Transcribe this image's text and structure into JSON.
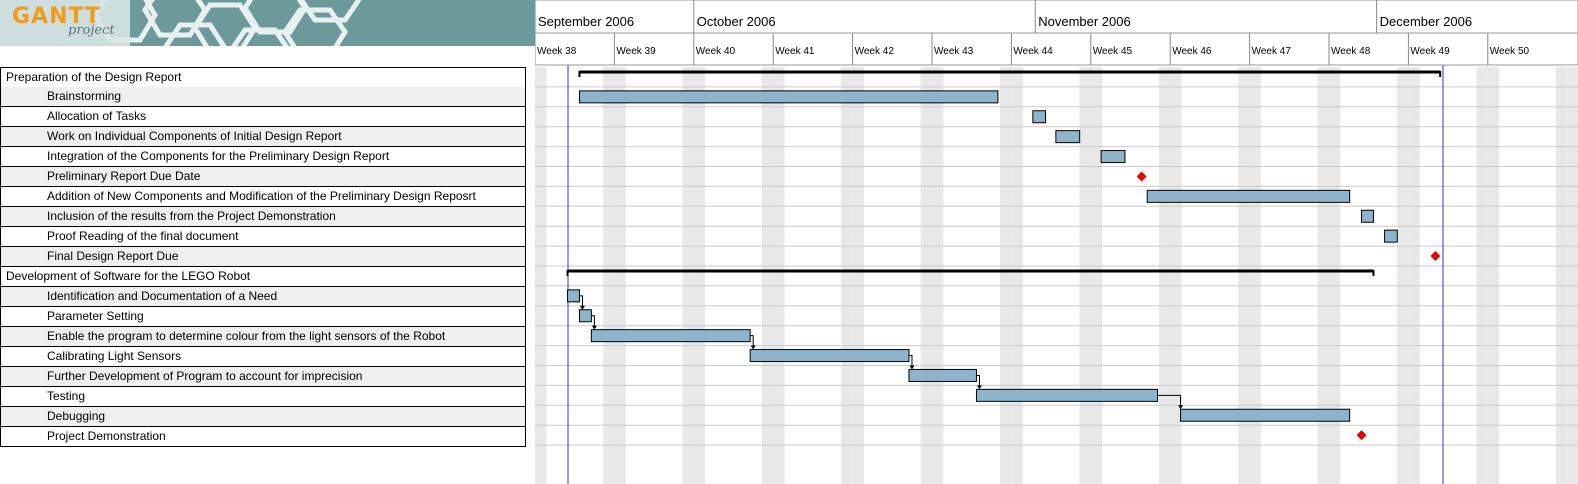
{
  "logo": {
    "brand": "GANTT",
    "sub": "project"
  },
  "timeline": {
    "months": [
      {
        "label": "September 2006",
        "start_week": 38
      },
      {
        "label": "October 2006",
        "start_week": 40
      },
      {
        "label": "November 2006",
        "start_week": 44.3
      },
      {
        "label": "December 2006",
        "start_week": 48.6
      }
    ],
    "weeks": [
      "Week 38",
      "Week 39",
      "Week 40",
      "Week 41",
      "Week 42",
      "Week 43",
      "Week 44",
      "Week 45",
      "Week 46",
      "Week 47",
      "Week 48",
      "Week 49",
      "Week 50"
    ],
    "first_week_number": 38
  },
  "tasks": [
    {
      "name": "Preparation of the  Design Report",
      "level": 0,
      "type": "summary",
      "start": 38.56,
      "end": 49.4
    },
    {
      "name": "Brainstorming",
      "level": 1,
      "type": "task",
      "start": 38.56,
      "end": 43.83
    },
    {
      "name": "Allocation of Tasks",
      "level": 1,
      "type": "task",
      "start": 44.27,
      "end": 44.43
    },
    {
      "name": "Work on Individual Components of Initial Design Report",
      "level": 1,
      "type": "task",
      "start": 44.56,
      "end": 44.86
    },
    {
      "name": "Integration of the Components for the Preliminary Design Report",
      "level": 1,
      "type": "task",
      "start": 45.13,
      "end": 45.43
    },
    {
      "name": "Preliminary Report Due Date",
      "level": 1,
      "type": "milestone",
      "start": 45.64
    },
    {
      "name": "Addition of New Components and Modification of the Preliminary Design Reposrt",
      "level": 1,
      "type": "task",
      "start": 45.71,
      "end": 48.26
    },
    {
      "name": "Inclusion of the results from the Project Demonstration",
      "level": 1,
      "type": "task",
      "start": 48.41,
      "end": 48.56
    },
    {
      "name": "Proof Reading of the final document",
      "level": 1,
      "type": "task",
      "start": 48.7,
      "end": 48.86
    },
    {
      "name": "Final Design Report Due",
      "level": 1,
      "type": "milestone",
      "start": 49.34
    },
    {
      "name": "Development of Software for the LEGO Robot",
      "level": 0,
      "type": "summary",
      "start": 38.41,
      "end": 48.56
    },
    {
      "name": "Identification and Documentation of a Need",
      "level": 1,
      "type": "task",
      "start": 38.41,
      "end": 38.56
    },
    {
      "name": "Parameter Setting",
      "level": 1,
      "type": "task",
      "start": 38.56,
      "end": 38.71
    },
    {
      "name": "Enable the program to determine colour from the light sensors of the Robot",
      "level": 1,
      "type": "task",
      "start": 38.71,
      "end": 40.71
    },
    {
      "name": "Calibrating Light Sensors",
      "level": 1,
      "type": "task",
      "start": 40.71,
      "end": 42.71
    },
    {
      "name": "Further Development of Program to account for imprecision",
      "level": 1,
      "type": "task",
      "start": 42.71,
      "end": 43.56
    },
    {
      "name": "Testing",
      "level": 1,
      "type": "task",
      "start": 43.56,
      "end": 45.84
    },
    {
      "name": "Debugging",
      "level": 1,
      "type": "task",
      "start": 46.13,
      "end": 48.26
    },
    {
      "name": "Project Demonstration",
      "level": 1,
      "type": "milestone",
      "start": 48.41
    }
  ],
  "dependencies": [
    [
      11,
      12
    ],
    [
      12,
      13
    ],
    [
      13,
      14
    ],
    [
      14,
      15
    ],
    [
      15,
      16
    ],
    [
      16,
      17
    ]
  ],
  "colors": {
    "bar_fill": "#8eb4cc",
    "milestone": "#ee0000",
    "weekend": "#e8e8e8",
    "today_line": "#3333cc",
    "grid": "#cccccc",
    "row_alt": "#efefef",
    "logo_bg": "#6c9a9a"
  }
}
